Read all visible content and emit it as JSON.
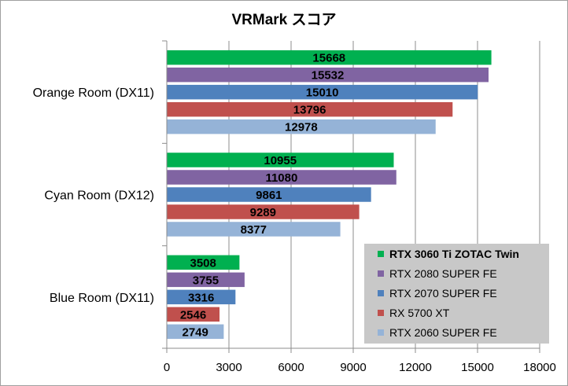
{
  "chart_data": {
    "type": "bar",
    "orientation": "horizontal",
    "title": "VRMark スコア",
    "categories": [
      "Orange Room (DX11)",
      "Cyan Room (DX12)",
      "Blue Room (DX11)"
    ],
    "series": [
      {
        "name": "RTX 3060 Ti ZOTAC Twin",
        "color": "#00b050",
        "bold": true,
        "values": [
          15668,
          10955,
          3508
        ]
      },
      {
        "name": "RTX 2080 SUPER FE",
        "color": "#8064a2",
        "bold": false,
        "values": [
          15532,
          11080,
          3755
        ]
      },
      {
        "name": "RTX 2070 SUPER FE",
        "color": "#4f81bd",
        "bold": false,
        "values": [
          15010,
          9861,
          3316
        ]
      },
      {
        "name": "RX 5700 XT",
        "color": "#c0504d",
        "bold": false,
        "values": [
          13796,
          9289,
          2546
        ]
      },
      {
        "name": "RTX 2060 SUPER FE",
        "color": "#95b3d7",
        "bold": false,
        "values": [
          12978,
          8377,
          2749
        ]
      }
    ],
    "xlim": [
      0,
      18000
    ],
    "xticks": [
      0,
      3000,
      6000,
      9000,
      12000,
      15000,
      18000
    ],
    "grid": true,
    "legend_position": "bottom-right"
  }
}
